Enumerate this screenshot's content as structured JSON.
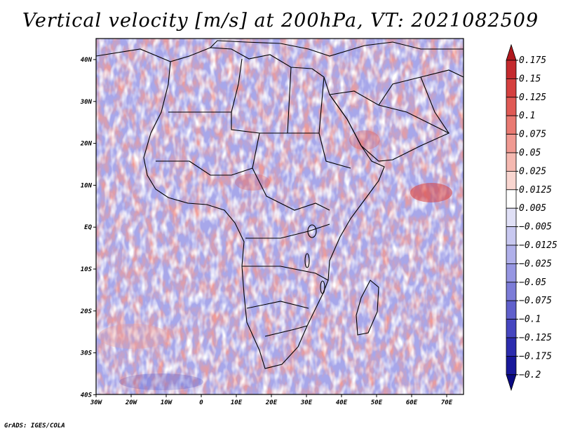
{
  "title": "Vertical velocity [m/s] at 200hPa, VT: 2021082509",
  "credit": "GrADS: IGES/COLA",
  "map": {
    "region": "Africa",
    "lon_range": [
      -30,
      75
    ],
    "lat_range": [
      -40,
      45
    ],
    "lon_ticks": [
      "30W",
      "20W",
      "10W",
      "0",
      "10E",
      "20E",
      "30E",
      "40E",
      "50E",
      "60E",
      "70E"
    ],
    "lat_ticks": [
      "40N",
      "30N",
      "20N",
      "10N",
      "EQ",
      "10S",
      "20S",
      "30S",
      "40S"
    ]
  },
  "colorbar": {
    "levels": [
      "0.175",
      "0.15",
      "0.125",
      "0.1",
      "0.075",
      "0.05",
      "0.025",
      "0.0125",
      "0.005",
      "−0.005",
      "−0.0125",
      "−0.025",
      "−0.05",
      "−0.075",
      "−0.1",
      "−0.125",
      "−0.175",
      "−0.2"
    ],
    "colors": [
      "#b0181e",
      "#c42a2e",
      "#d5403f",
      "#e05a55",
      "#e97a72",
      "#f09a92",
      "#f5b9b1",
      "#f9d6d0",
      "#ffffff",
      "#e0e0f6",
      "#c8c8f0",
      "#b0b0ea",
      "#9696e2",
      "#7c7cd8",
      "#6060cc",
      "#4646c0",
      "#2c2cae",
      "#18189a",
      "#0a0a82"
    ]
  }
}
